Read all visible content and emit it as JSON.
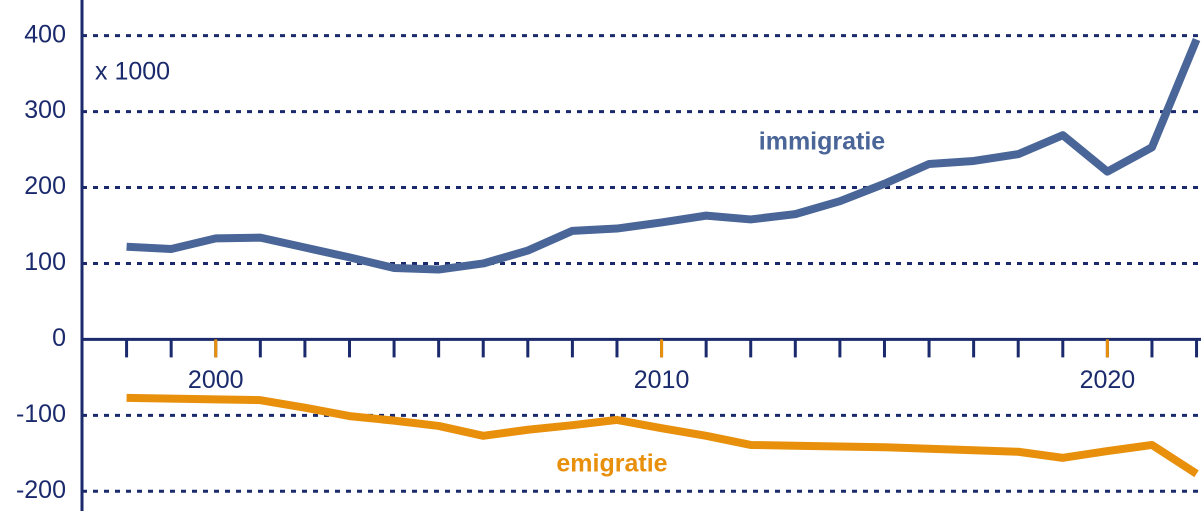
{
  "chart_data": {
    "type": "line",
    "unit_label": "x 1000",
    "x": [
      1998,
      1999,
      2000,
      2001,
      2002,
      2003,
      2004,
      2005,
      2006,
      2007,
      2008,
      2009,
      2010,
      2011,
      2012,
      2013,
      2014,
      2015,
      2016,
      2017,
      2018,
      2019,
      2020,
      2021,
      2022
    ],
    "series": [
      {
        "name": "immigratie",
        "color": "#4a6597",
        "values": [
          122,
          119,
          133,
          134,
          121,
          108,
          94,
          92,
          100,
          117,
          143,
          146,
          154,
          163,
          158,
          165,
          182,
          205,
          231,
          235,
          244,
          269,
          221,
          253,
          395
        ]
      },
      {
        "name": "emigratie",
        "color": "#e8900c",
        "values": [
          -77,
          -78,
          -79,
          -80,
          -90,
          -101,
          -107,
          -114,
          -127,
          -119,
          -113,
          -106,
          -117,
          -127,
          -139,
          -140,
          -141,
          -142,
          -144,
          -146,
          -148,
          -156,
          -147,
          -139,
          -177
        ]
      }
    ],
    "xlim": [
      1997,
      2022.1
    ],
    "xticks": [
      2000,
      2010,
      2020
    ],
    "ylim": [
      -226,
      447
    ],
    "yticks": [
      -200,
      -100,
      0,
      100,
      200,
      300,
      400
    ],
    "grid": true,
    "axis_color": "#1a2a6c",
    "tick_color": "#e8900c"
  }
}
